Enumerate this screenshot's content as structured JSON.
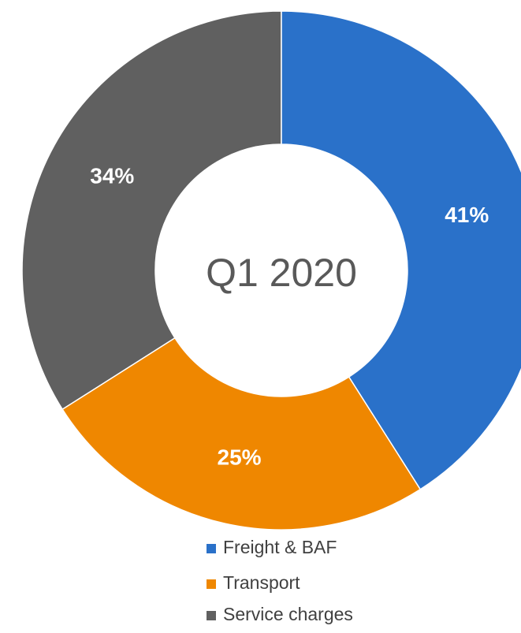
{
  "chart_data": {
    "type": "donut",
    "center_label": "Q1 2020",
    "categories": [
      "Freight & BAF",
      "Transport",
      "Service charges"
    ],
    "values": [
      41,
      25,
      34
    ],
    "value_labels": [
      "41%",
      "25%",
      "34%"
    ],
    "colors": [
      "#2a71c9",
      "#ef8700",
      "#606060"
    ],
    "legend": "bottom"
  }
}
